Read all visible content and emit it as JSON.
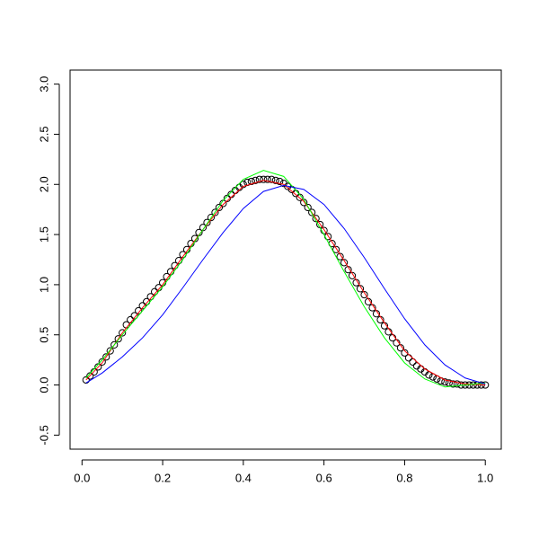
{
  "chart_data": {
    "type": "scatter",
    "x": [
      0.01,
      0.02,
      0.03,
      0.04,
      0.05,
      0.06,
      0.07,
      0.08,
      0.09,
      0.1,
      0.11,
      0.12,
      0.13,
      0.14,
      0.15,
      0.16,
      0.17,
      0.18,
      0.19,
      0.2,
      0.21,
      0.22,
      0.23,
      0.24,
      0.25,
      0.26,
      0.27,
      0.28,
      0.29,
      0.3,
      0.31,
      0.32,
      0.33,
      0.34,
      0.35,
      0.36,
      0.37,
      0.38,
      0.39,
      0.4,
      0.41,
      0.42,
      0.43,
      0.44,
      0.45,
      0.46,
      0.47,
      0.48,
      0.49,
      0.5,
      0.51,
      0.52,
      0.53,
      0.54,
      0.55,
      0.56,
      0.57,
      0.58,
      0.59,
      0.6,
      0.61,
      0.62,
      0.63,
      0.64,
      0.65,
      0.66,
      0.67,
      0.68,
      0.69,
      0.7,
      0.71,
      0.72,
      0.73,
      0.74,
      0.75,
      0.76,
      0.77,
      0.78,
      0.79,
      0.8,
      0.81,
      0.82,
      0.83,
      0.84,
      0.85,
      0.86,
      0.87,
      0.88,
      0.89,
      0.9,
      0.91,
      0.92,
      0.93,
      0.94,
      0.95,
      0.96,
      0.97,
      0.98,
      0.99,
      1.0
    ],
    "values": [
      0.05,
      0.09,
      0.13,
      0.18,
      0.23,
      0.28,
      0.34,
      0.4,
      0.46,
      0.52,
      0.6,
      0.65,
      0.69,
      0.74,
      0.79,
      0.83,
      0.88,
      0.93,
      0.97,
      1.02,
      1.08,
      1.13,
      1.19,
      1.24,
      1.3,
      1.35,
      1.41,
      1.46,
      1.52,
      1.57,
      1.62,
      1.67,
      1.72,
      1.77,
      1.81,
      1.86,
      1.9,
      1.94,
      1.97,
      2.0,
      2.02,
      2.03,
      2.04,
      2.05,
      2.05,
      2.05,
      2.05,
      2.04,
      2.03,
      2.01,
      1.98,
      1.95,
      1.91,
      1.87,
      1.82,
      1.77,
      1.72,
      1.66,
      1.6,
      1.54,
      1.48,
      1.41,
      1.35,
      1.28,
      1.22,
      1.15,
      1.09,
      1.02,
      0.96,
      0.9,
      0.83,
      0.77,
      0.71,
      0.65,
      0.59,
      0.53,
      0.47,
      0.42,
      0.37,
      0.32,
      0.27,
      0.23,
      0.19,
      0.16,
      0.13,
      0.1,
      0.08,
      0.06,
      0.04,
      0.03,
      0.02,
      0.01,
      0.01,
      0,
      0,
      0,
      0,
      0,
      0,
      0
    ],
    "color": "#000000",
    "lines": [
      {
        "color": "#ff0000",
        "x": [
          0.01,
          0.05,
          0.1,
          0.15,
          0.2,
          0.25,
          0.3,
          0.35,
          0.4,
          0.45,
          0.5,
          0.55,
          0.6,
          0.65,
          0.7,
          0.75,
          0.8,
          0.85,
          0.9,
          0.95,
          1.0
        ],
        "values": [
          0.05,
          0.22,
          0.52,
          0.77,
          1.0,
          1.28,
          1.55,
          1.8,
          1.98,
          2.04,
          2.0,
          1.83,
          1.55,
          1.24,
          0.92,
          0.62,
          0.34,
          0.16,
          0.05,
          0.01,
          0.0
        ]
      },
      {
        "color": "#00ff00",
        "x": [
          0.01,
          0.05,
          0.1,
          0.15,
          0.2,
          0.25,
          0.3,
          0.35,
          0.4,
          0.45,
          0.5,
          0.55,
          0.6,
          0.65,
          0.7,
          0.75,
          0.8,
          0.85,
          0.9,
          0.95,
          1.0
        ],
        "values": [
          0.07,
          0.25,
          0.5,
          0.74,
          0.98,
          1.25,
          1.55,
          1.84,
          2.05,
          2.14,
          2.08,
          1.85,
          1.5,
          1.13,
          0.78,
          0.47,
          0.22,
          0.06,
          -0.02,
          0.0,
          0.02
        ]
      },
      {
        "color": "#0000ff",
        "x": [
          0.01,
          0.05,
          0.1,
          0.15,
          0.2,
          0.25,
          0.3,
          0.35,
          0.4,
          0.45,
          0.5,
          0.55,
          0.6,
          0.65,
          0.7,
          0.75,
          0.8,
          0.85,
          0.9,
          0.95,
          1.0
        ],
        "values": [
          0.02,
          0.12,
          0.28,
          0.47,
          0.7,
          0.97,
          1.25,
          1.52,
          1.76,
          1.93,
          1.99,
          1.95,
          1.8,
          1.56,
          1.27,
          0.96,
          0.66,
          0.4,
          0.2,
          0.07,
          0.01
        ]
      }
    ],
    "xlim": [
      -0.0296,
      1.0396
    ],
    "ylim": [
      -0.64,
      3.14
    ],
    "xticks": [
      {
        "value": 0,
        "label": "0.0"
      },
      {
        "value": 0.2,
        "label": "0.2"
      },
      {
        "value": 0.4,
        "label": "0.4"
      },
      {
        "value": 0.6,
        "label": "0.6"
      },
      {
        "value": 0.8,
        "label": "0.8"
      },
      {
        "value": 1,
        "label": "1.0"
      }
    ],
    "yticks": [
      {
        "value": -0.5,
        "label": "-0.5"
      },
      {
        "value": 0,
        "label": "0.0"
      },
      {
        "value": 0.5,
        "label": "0.5"
      },
      {
        "value": 1,
        "label": "1.0"
      },
      {
        "value": 1.5,
        "label": "1.5"
      },
      {
        "value": 2,
        "label": "2.0"
      },
      {
        "value": 2.5,
        "label": "2.5"
      },
      {
        "value": 3,
        "label": "3.0"
      }
    ]
  }
}
